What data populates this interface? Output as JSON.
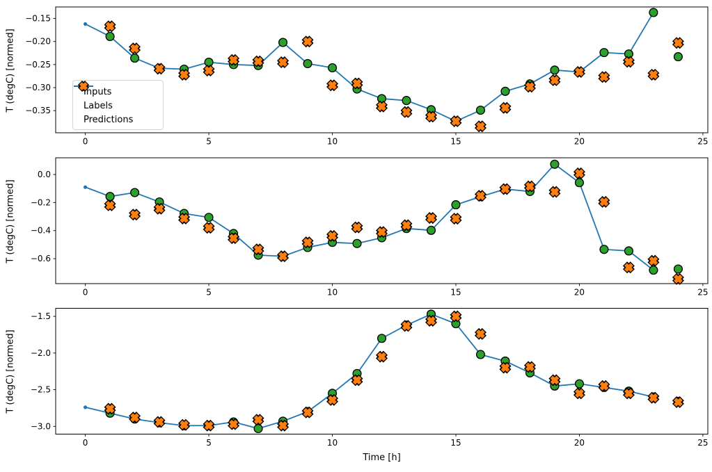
{
  "figure": {
    "xlabel": "Time [h]",
    "ylabel": "T (degC) [normed]",
    "background": "#ffffff",
    "legend": {
      "position": "upper-left-area of subplot 1",
      "items": [
        {
          "label": "Inputs",
          "marker": "line-dot",
          "color": "#1f77b4"
        },
        {
          "label": "Labels",
          "marker": "circle",
          "color": "#2ca02c"
        },
        {
          "label": "Predictions",
          "marker": "X",
          "color": "#ff7f0e"
        }
      ]
    },
    "marker_edge_color": "#000000"
  },
  "chart_data": [
    {
      "type": "line",
      "title": "",
      "xlabel": "",
      "ylabel": "T (degC) [normed]",
      "xlim": [
        -1.2,
        25.2
      ],
      "ylim": [
        -0.398,
        -0.125
      ],
      "xticks": [
        0,
        5,
        10,
        15,
        20,
        25
      ],
      "xtick_labels": [
        "0",
        "5",
        "10",
        "15",
        "20",
        "25"
      ],
      "yticks": [
        -0.15,
        -0.2,
        -0.25,
        -0.3,
        -0.35
      ],
      "ytick_labels": [
        "−0.15",
        "−0.20",
        "−0.25",
        "−0.30",
        "−0.35"
      ],
      "grid": false,
      "series": [
        {
          "name": "Inputs",
          "type": "line",
          "marker": "dot",
          "color": "#1f77b4",
          "x": [
            0,
            1,
            2,
            3,
            4,
            5,
            6,
            7,
            8,
            9,
            10,
            11,
            12,
            13,
            14,
            15,
            16,
            17,
            18,
            19,
            20,
            21,
            22,
            23
          ],
          "y": [
            -0.162,
            -0.189,
            -0.236,
            -0.258,
            -0.26,
            -0.245,
            -0.25,
            -0.252,
            -0.202,
            -0.248,
            -0.257,
            -0.303,
            -0.324,
            -0.328,
            -0.348,
            -0.373,
            -0.349,
            -0.308,
            -0.292,
            -0.262,
            -0.266,
            -0.224,
            -0.227,
            -0.137
          ]
        },
        {
          "name": "Labels",
          "type": "scatter",
          "marker": "circle",
          "color": "#2ca02c",
          "x": [
            1,
            2,
            3,
            4,
            5,
            6,
            7,
            8,
            9,
            10,
            11,
            12,
            13,
            14,
            15,
            16,
            17,
            18,
            19,
            20,
            21,
            22,
            23,
            24
          ],
          "y": [
            -0.189,
            -0.236,
            -0.258,
            -0.26,
            -0.245,
            -0.25,
            -0.252,
            -0.202,
            -0.248,
            -0.257,
            -0.303,
            -0.324,
            -0.328,
            -0.348,
            -0.373,
            -0.349,
            -0.308,
            -0.292,
            -0.262,
            -0.266,
            -0.224,
            -0.227,
            -0.137,
            -0.233
          ]
        },
        {
          "name": "Predictions",
          "type": "scatter",
          "marker": "X",
          "color": "#ff7f0e",
          "x": [
            1,
            2,
            3,
            4,
            5,
            6,
            7,
            8,
            9,
            10,
            11,
            12,
            13,
            14,
            15,
            16,
            17,
            18,
            19,
            20,
            21,
            22,
            23,
            24
          ],
          "y": [
            -0.167,
            -0.215,
            -0.259,
            -0.272,
            -0.263,
            -0.24,
            -0.243,
            -0.245,
            -0.2,
            -0.295,
            -0.291,
            -0.341,
            -0.353,
            -0.363,
            -0.373,
            -0.384,
            -0.344,
            -0.298,
            -0.284,
            -0.266,
            -0.277,
            -0.244,
            -0.272,
            -0.203
          ]
        }
      ]
    },
    {
      "type": "line",
      "title": "",
      "xlabel": "",
      "ylabel": "T (degC) [normed]",
      "xlim": [
        -1.2,
        25.2
      ],
      "ylim": [
        -0.778,
        0.119
      ],
      "xticks": [
        0,
        5,
        10,
        15,
        20,
        25
      ],
      "xtick_labels": [
        "0",
        "5",
        "10",
        "15",
        "20",
        "25"
      ],
      "yticks": [
        0.0,
        -0.2,
        -0.4,
        -0.6
      ],
      "ytick_labels": [
        "0.0",
        "−0.2",
        "−0.4",
        "−0.6"
      ],
      "grid": false,
      "series": [
        {
          "name": "Inputs",
          "type": "line",
          "marker": "dot",
          "color": "#1f77b4",
          "x": [
            0,
            1,
            2,
            3,
            4,
            5,
            6,
            7,
            8,
            9,
            10,
            11,
            12,
            13,
            14,
            15,
            16,
            17,
            18,
            19,
            20,
            21,
            22,
            23
          ],
          "y": [
            -0.09,
            -0.157,
            -0.129,
            -0.196,
            -0.278,
            -0.306,
            -0.421,
            -0.575,
            -0.583,
            -0.52,
            -0.484,
            -0.492,
            -0.451,
            -0.385,
            -0.398,
            -0.216,
            -0.158,
            -0.104,
            -0.121,
            0.073,
            -0.058,
            -0.534,
            -0.545,
            -0.682
          ]
        },
        {
          "name": "Labels",
          "type": "scatter",
          "marker": "circle",
          "color": "#2ca02c",
          "x": [
            1,
            2,
            3,
            4,
            5,
            6,
            7,
            8,
            9,
            10,
            11,
            12,
            13,
            14,
            15,
            16,
            17,
            18,
            19,
            20,
            21,
            22,
            23,
            24
          ],
          "y": [
            -0.157,
            -0.129,
            -0.196,
            -0.278,
            -0.306,
            -0.421,
            -0.575,
            -0.583,
            -0.52,
            -0.484,
            -0.492,
            -0.451,
            -0.385,
            -0.398,
            -0.216,
            -0.158,
            -0.104,
            -0.121,
            0.073,
            -0.058,
            -0.534,
            -0.545,
            -0.682,
            -0.674
          ]
        },
        {
          "name": "Predictions",
          "type": "scatter",
          "marker": "X",
          "color": "#ff7f0e",
          "x": [
            1,
            2,
            3,
            4,
            5,
            6,
            7,
            8,
            9,
            10,
            11,
            12,
            13,
            14,
            15,
            16,
            17,
            18,
            19,
            20,
            21,
            22,
            23,
            24
          ],
          "y": [
            -0.22,
            -0.286,
            -0.244,
            -0.314,
            -0.38,
            -0.454,
            -0.534,
            -0.583,
            -0.484,
            -0.438,
            -0.377,
            -0.41,
            -0.362,
            -0.31,
            -0.315,
            -0.152,
            -0.104,
            -0.085,
            -0.124,
            0.008,
            -0.195,
            -0.663,
            -0.615,
            -0.745
          ]
        }
      ]
    },
    {
      "type": "line",
      "title": "",
      "xlabel": "Time [h]",
      "ylabel": "T (degC) [normed]",
      "xlim": [
        -1.2,
        25.2
      ],
      "ylim": [
        -3.106,
        -1.39
      ],
      "xticks": [
        0,
        5,
        10,
        15,
        20,
        25
      ],
      "xtick_labels": [
        "0",
        "5",
        "10",
        "15",
        "20",
        "25"
      ],
      "yticks": [
        -1.5,
        -2.0,
        -2.5,
        -3.0
      ],
      "ytick_labels": [
        "−1.5",
        "−2.0",
        "−2.5",
        "−3.0"
      ],
      "grid": false,
      "series": [
        {
          "name": "Inputs",
          "type": "line",
          "marker": "dot",
          "color": "#1f77b4",
          "x": [
            0,
            1,
            2,
            3,
            4,
            5,
            6,
            7,
            8,
            9,
            10,
            11,
            12,
            13,
            14,
            15,
            16,
            17,
            18,
            19,
            20,
            21,
            22,
            23
          ],
          "y": [
            -2.74,
            -2.82,
            -2.9,
            -2.95,
            -2.99,
            -2.99,
            -2.94,
            -3.03,
            -2.93,
            -2.8,
            -2.55,
            -2.28,
            -1.8,
            -1.62,
            -1.47,
            -1.6,
            -2.02,
            -2.11,
            -2.27,
            -2.45,
            -2.42,
            -2.47,
            -2.52,
            -2.6
          ]
        },
        {
          "name": "Labels",
          "type": "scatter",
          "marker": "circle",
          "color": "#2ca02c",
          "x": [
            1,
            2,
            3,
            4,
            5,
            6,
            7,
            8,
            9,
            10,
            11,
            12,
            13,
            14,
            15,
            16,
            17,
            18,
            19,
            20,
            21,
            22,
            23,
            24
          ],
          "y": [
            -2.82,
            -2.9,
            -2.95,
            -2.99,
            -2.99,
            -2.94,
            -3.03,
            -2.93,
            -2.8,
            -2.55,
            -2.28,
            -1.8,
            -1.62,
            -1.47,
            -1.6,
            -2.02,
            -2.11,
            -2.27,
            -2.45,
            -2.42,
            -2.47,
            -2.52,
            -2.6,
            -2.66
          ]
        },
        {
          "name": "Predictions",
          "type": "scatter",
          "marker": "X",
          "color": "#ff7f0e",
          "x": [
            1,
            2,
            3,
            4,
            5,
            6,
            7,
            8,
            9,
            10,
            11,
            12,
            13,
            14,
            15,
            16,
            17,
            18,
            19,
            20,
            21,
            22,
            23,
            24
          ],
          "y": [
            -2.76,
            -2.88,
            -2.94,
            -2.98,
            -2.99,
            -2.97,
            -2.91,
            -2.99,
            -2.81,
            -2.64,
            -2.37,
            -2.05,
            -1.63,
            -1.56,
            -1.5,
            -1.74,
            -2.2,
            -2.19,
            -2.37,
            -2.55,
            -2.45,
            -2.55,
            -2.61,
            -2.67
          ]
        }
      ]
    }
  ]
}
